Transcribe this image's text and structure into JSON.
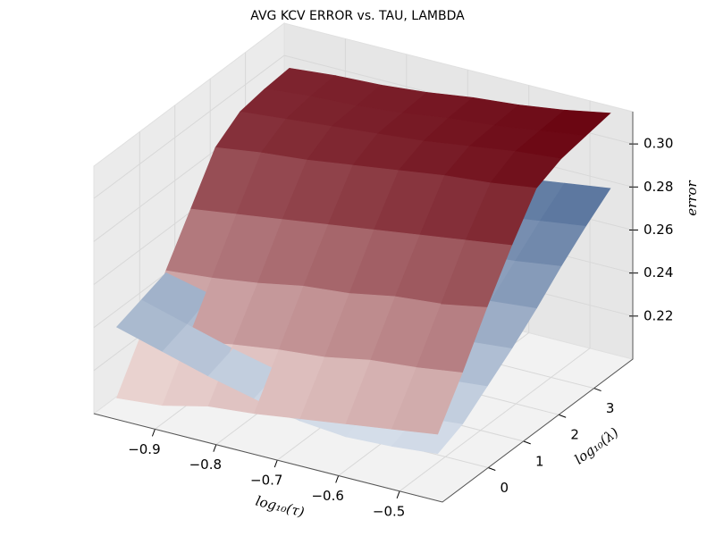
{
  "chart_data": {
    "type": "surface3d",
    "title": "AVG KCV ERROR vs. TAU, LAMBDA",
    "xlabel": "log₁₀(τ)",
    "ylabel": "log₁₀(λ)",
    "zlabel": "error",
    "x": [
      -0.98,
      -0.905,
      -0.83,
      -0.755,
      -0.68,
      -0.605,
      -0.53,
      -0.455
    ],
    "y": [
      -1.0,
      -0.3,
      0.4,
      1.1,
      1.8,
      2.5,
      3.2,
      3.9
    ],
    "xlim": [
      -1.0,
      -0.43
    ],
    "ylim": [
      -1.3,
      4.1
    ],
    "zlim": [
      0.2,
      0.315
    ],
    "xticks": [
      {
        "value": -0.9,
        "label": "−0.9"
      },
      {
        "value": -0.8,
        "label": "−0.8"
      },
      {
        "value": -0.7,
        "label": "−0.7"
      },
      {
        "value": -0.6,
        "label": "−0.6"
      },
      {
        "value": -0.5,
        "label": "−0.5"
      }
    ],
    "yticks": [
      0,
      1,
      2,
      3
    ],
    "zticks": [
      0.22,
      0.24,
      0.26,
      0.28,
      {
        "value": 0.3,
        "label": "0.30"
      }
    ],
    "grid": true,
    "series": [
      {
        "colors": [
          "#fff5f0",
          "#67000d"
        ],
        "z": [
          [
            0.205,
            0.207,
            0.212,
            0.214,
            0.217,
            0.22,
            0.223,
            0.226
          ],
          [
            0.226,
            0.228,
            0.232,
            0.235,
            0.237,
            0.241,
            0.243,
            0.246
          ],
          [
            0.247,
            0.249,
            0.252,
            0.256,
            0.258,
            0.262,
            0.264,
            0.268
          ],
          [
            0.267,
            0.27,
            0.273,
            0.276,
            0.279,
            0.282,
            0.285,
            0.288
          ],
          [
            0.287,
            0.29,
            0.292,
            0.295,
            0.298,
            0.301,
            0.303,
            0.306
          ],
          [
            0.295,
            0.297,
            0.299,
            0.301,
            0.303,
            0.306,
            0.309,
            0.311
          ],
          [
            0.297,
            0.299,
            0.3,
            0.302,
            0.305,
            0.307,
            0.31,
            0.313
          ],
          [
            0.298,
            0.3,
            0.301,
            0.303,
            0.306,
            0.308,
            0.311,
            0.315
          ]
        ]
      },
      {
        "colors": [
          "#f7fbff",
          "#08306b"
        ],
        "z": [
          [
            0.238,
            0.232,
            0.226,
            0.221,
            0.216,
            0.214,
            0.215,
            0.217
          ],
          [
            0.242,
            0.236,
            0.23,
            0.225,
            0.221,
            0.219,
            0.22,
            0.222
          ],
          [
            0.246,
            0.241,
            0.236,
            0.232,
            0.229,
            0.228,
            0.229,
            0.231
          ],
          [
            0.25,
            0.246,
            0.242,
            0.239,
            0.237,
            0.237,
            0.238,
            0.24
          ],
          [
            0.254,
            0.251,
            0.248,
            0.246,
            0.245,
            0.246,
            0.248,
            0.25
          ],
          [
            0.258,
            0.256,
            0.254,
            0.253,
            0.254,
            0.256,
            0.258,
            0.261
          ],
          [
            0.262,
            0.261,
            0.26,
            0.26,
            0.262,
            0.265,
            0.268,
            0.271
          ],
          [
            0.266,
            0.266,
            0.266,
            0.268,
            0.27,
            0.274,
            0.277,
            0.28
          ]
        ]
      }
    ]
  }
}
